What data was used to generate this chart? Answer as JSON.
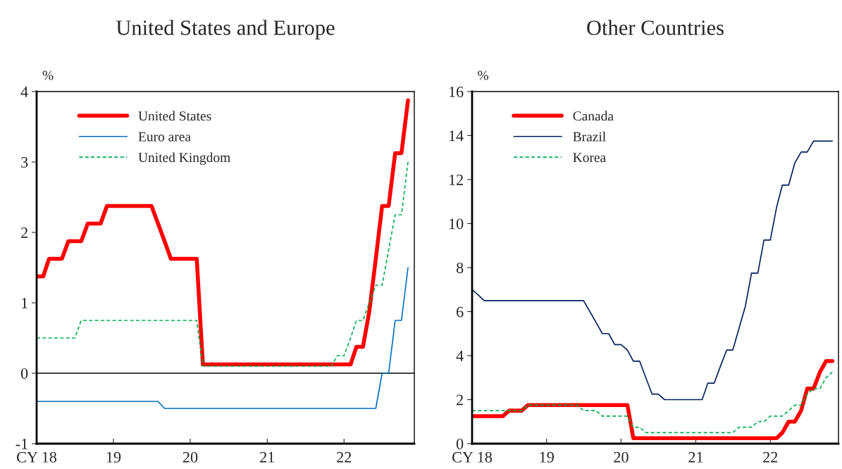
{
  "chart_data": [
    {
      "type": "line",
      "title": "United States and Europe",
      "ylabel": "%",
      "x": [
        "2018-01",
        "2018-02",
        "2018-03",
        "2018-04",
        "2018-05",
        "2018-06",
        "2018-07",
        "2018-08",
        "2018-09",
        "2018-10",
        "2018-11",
        "2018-12",
        "2019-01",
        "2019-02",
        "2019-03",
        "2019-04",
        "2019-05",
        "2019-06",
        "2019-07",
        "2019-08",
        "2019-09",
        "2019-10",
        "2019-11",
        "2019-12",
        "2020-01",
        "2020-02",
        "2020-03",
        "2020-04",
        "2020-05",
        "2020-06",
        "2020-07",
        "2020-08",
        "2020-09",
        "2020-10",
        "2020-11",
        "2020-12",
        "2021-01",
        "2021-02",
        "2021-03",
        "2021-04",
        "2021-05",
        "2021-06",
        "2021-07",
        "2021-08",
        "2021-09",
        "2021-10",
        "2021-11",
        "2021-12",
        "2022-01",
        "2022-02",
        "2022-03",
        "2022-04",
        "2022-05",
        "2022-06",
        "2022-07",
        "2022-08",
        "2022-09",
        "2022-10",
        "2022-11"
      ],
      "series": [
        {
          "name": "United States",
          "color": "#ff0000",
          "line_style": "solid",
          "values": [
            1.375,
            1.375,
            1.625,
            1.625,
            1.625,
            1.875,
            1.875,
            1.875,
            2.125,
            2.125,
            2.125,
            2.375,
            2.375,
            2.375,
            2.375,
            2.375,
            2.375,
            2.375,
            2.375,
            2.125,
            1.875,
            1.625,
            1.625,
            1.625,
            1.625,
            1.625,
            0.125,
            0.125,
            0.125,
            0.125,
            0.125,
            0.125,
            0.125,
            0.125,
            0.125,
            0.125,
            0.125,
            0.125,
            0.125,
            0.125,
            0.125,
            0.125,
            0.125,
            0.125,
            0.125,
            0.125,
            0.125,
            0.125,
            0.125,
            0.125,
            0.375,
            0.375,
            0.875,
            1.625,
            2.375,
            2.375,
            3.125,
            3.125,
            3.875
          ]
        },
        {
          "name": "Euro area",
          "color": "#0070c0",
          "line_style": "solid",
          "values": [
            -0.4,
            -0.4,
            -0.4,
            -0.4,
            -0.4,
            -0.4,
            -0.4,
            -0.4,
            -0.4,
            -0.4,
            -0.4,
            -0.4,
            -0.4,
            -0.4,
            -0.4,
            -0.4,
            -0.4,
            -0.4,
            -0.4,
            -0.4,
            -0.5,
            -0.5,
            -0.5,
            -0.5,
            -0.5,
            -0.5,
            -0.5,
            -0.5,
            -0.5,
            -0.5,
            -0.5,
            -0.5,
            -0.5,
            -0.5,
            -0.5,
            -0.5,
            -0.5,
            -0.5,
            -0.5,
            -0.5,
            -0.5,
            -0.5,
            -0.5,
            -0.5,
            -0.5,
            -0.5,
            -0.5,
            -0.5,
            -0.5,
            -0.5,
            -0.5,
            -0.5,
            -0.5,
            -0.5,
            0,
            0,
            0.75,
            0.75,
            1.5
          ]
        },
        {
          "name": "United Kingdom",
          "color": "#00b050",
          "line_style": "dashed",
          "values": [
            0.5,
            0.5,
            0.5,
            0.5,
            0.5,
            0.5,
            0.5,
            0.75,
            0.75,
            0.75,
            0.75,
            0.75,
            0.75,
            0.75,
            0.75,
            0.75,
            0.75,
            0.75,
            0.75,
            0.75,
            0.75,
            0.75,
            0.75,
            0.75,
            0.75,
            0.75,
            0.1,
            0.1,
            0.1,
            0.1,
            0.1,
            0.1,
            0.1,
            0.1,
            0.1,
            0.1,
            0.1,
            0.1,
            0.1,
            0.1,
            0.1,
            0.1,
            0.1,
            0.1,
            0.1,
            0.1,
            0.1,
            0.25,
            0.25,
            0.5,
            0.75,
            0.75,
            1.0,
            1.25,
            1.25,
            1.75,
            2.25,
            2.25,
            3.0
          ]
        }
      ],
      "xlim": [
        "2018-01",
        "2022-12"
      ],
      "xticks": [
        {
          "value": "2018-01",
          "label": "CY 18"
        },
        {
          "value": "2019-01",
          "label": "19"
        },
        {
          "value": "2020-01",
          "label": "20"
        },
        {
          "value": "2021-01",
          "label": "21"
        },
        {
          "value": "2022-01",
          "label": "22"
        }
      ],
      "ylim": [
        -1,
        4
      ],
      "yticks": [
        {
          "value": -1,
          "label": "-1"
        },
        0,
        1,
        2,
        3,
        4
      ],
      "ref_lines": [
        {
          "axis": "y",
          "value": 0,
          "color": "#000000"
        }
      ],
      "grid": false,
      "legend": "top left"
    },
    {
      "type": "line",
      "title": "Other Countries",
      "ylabel": "%",
      "x": [
        "2018-01",
        "2018-02",
        "2018-03",
        "2018-04",
        "2018-05",
        "2018-06",
        "2018-07",
        "2018-08",
        "2018-09",
        "2018-10",
        "2018-11",
        "2018-12",
        "2019-01",
        "2019-02",
        "2019-03",
        "2019-04",
        "2019-05",
        "2019-06",
        "2019-07",
        "2019-08",
        "2019-09",
        "2019-10",
        "2019-11",
        "2019-12",
        "2020-01",
        "2020-02",
        "2020-03",
        "2020-04",
        "2020-05",
        "2020-06",
        "2020-07",
        "2020-08",
        "2020-09",
        "2020-10",
        "2020-11",
        "2020-12",
        "2021-01",
        "2021-02",
        "2021-03",
        "2021-04",
        "2021-05",
        "2021-06",
        "2021-07",
        "2021-08",
        "2021-09",
        "2021-10",
        "2021-11",
        "2021-12",
        "2022-01",
        "2022-02",
        "2022-03",
        "2022-04",
        "2022-05",
        "2022-06",
        "2022-07",
        "2022-08",
        "2022-09",
        "2022-10",
        "2022-11"
      ],
      "series": [
        {
          "name": "Canada",
          "color": "#ff0000",
          "line_style": "solid",
          "values": [
            1.25,
            1.25,
            1.25,
            1.25,
            1.25,
            1.25,
            1.5,
            1.5,
            1.5,
            1.75,
            1.75,
            1.75,
            1.75,
            1.75,
            1.75,
            1.75,
            1.75,
            1.75,
            1.75,
            1.75,
            1.75,
            1.75,
            1.75,
            1.75,
            1.75,
            1.75,
            0.25,
            0.25,
            0.25,
            0.25,
            0.25,
            0.25,
            0.25,
            0.25,
            0.25,
            0.25,
            0.25,
            0.25,
            0.25,
            0.25,
            0.25,
            0.25,
            0.25,
            0.25,
            0.25,
            0.25,
            0.25,
            0.25,
            0.25,
            0.25,
            0.5,
            1.0,
            1.0,
            1.5,
            2.5,
            2.5,
            3.25,
            3.75,
            3.75
          ]
        },
        {
          "name": "Brazil",
          "color": "#002060",
          "line_style": "solid",
          "values": [
            7.0,
            6.75,
            6.5,
            6.5,
            6.5,
            6.5,
            6.5,
            6.5,
            6.5,
            6.5,
            6.5,
            6.5,
            6.5,
            6.5,
            6.5,
            6.5,
            6.5,
            6.5,
            6.5,
            6.0,
            5.5,
            5.0,
            5.0,
            4.5,
            4.5,
            4.25,
            3.75,
            3.75,
            3.0,
            2.25,
            2.25,
            2.0,
            2.0,
            2.0,
            2.0,
            2.0,
            2.0,
            2.0,
            2.75,
            2.75,
            3.5,
            4.25,
            4.25,
            5.25,
            6.25,
            7.75,
            7.75,
            9.25,
            9.25,
            10.75,
            11.75,
            11.75,
            12.75,
            13.25,
            13.25,
            13.75,
            13.75,
            13.75,
            13.75
          ]
        },
        {
          "name": "Korea",
          "color": "#00b050",
          "line_style": "dashed",
          "values": [
            1.5,
            1.5,
            1.5,
            1.5,
            1.5,
            1.5,
            1.5,
            1.5,
            1.5,
            1.75,
            1.75,
            1.75,
            1.75,
            1.75,
            1.75,
            1.75,
            1.75,
            1.75,
            1.5,
            1.5,
            1.5,
            1.25,
            1.25,
            1.25,
            1.25,
            1.25,
            0.75,
            0.75,
            0.5,
            0.5,
            0.5,
            0.5,
            0.5,
            0.5,
            0.5,
            0.5,
            0.5,
            0.5,
            0.5,
            0.5,
            0.5,
            0.5,
            0.5,
            0.75,
            0.75,
            0.75,
            1.0,
            1.0,
            1.25,
            1.25,
            1.25,
            1.5,
            1.75,
            1.75,
            2.25,
            2.5,
            2.5,
            3.0,
            3.25
          ]
        }
      ],
      "xlim": [
        "2018-01",
        "2022-12"
      ],
      "xticks": [
        {
          "value": "2018-01",
          "label": "CY 18"
        },
        {
          "value": "2019-01",
          "label": "19"
        },
        {
          "value": "2020-01",
          "label": "20"
        },
        {
          "value": "2021-01",
          "label": "21"
        },
        {
          "value": "2022-01",
          "label": "22"
        }
      ],
      "ylim": [
        0,
        16
      ],
      "yticks": [
        0,
        2,
        4,
        6,
        8,
        10,
        12,
        14,
        16
      ],
      "grid": false,
      "legend": "top left"
    }
  ]
}
